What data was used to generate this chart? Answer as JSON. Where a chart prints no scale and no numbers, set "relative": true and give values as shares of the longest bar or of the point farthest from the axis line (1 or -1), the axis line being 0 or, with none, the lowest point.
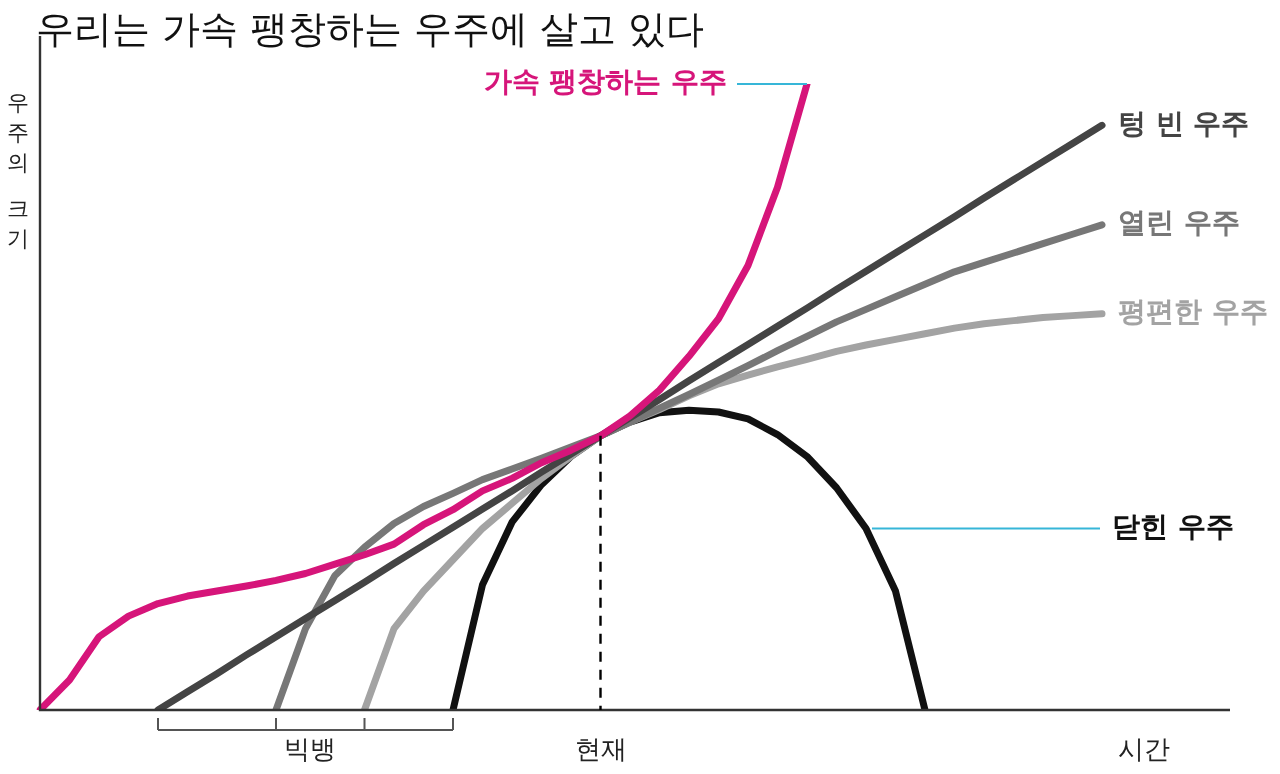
{
  "chart_data": {
    "type": "line",
    "title": "우리는 가속 팽창하는 우주에 살고 있다",
    "xlabel": "시간",
    "ylabel": "우주의 크기",
    "relative": true,
    "legend": "right",
    "marker": "none",
    "line_style": "solid",
    "categories": [
      null,
      null,
      null,
      null,
      null,
      null,
      null,
      null,
      null,
      null,
      null,
      null,
      null,
      null,
      null,
      null,
      null,
      null,
      null,
      null,
      null,
      null,
      null,
      null,
      null,
      null,
      null,
      null,
      null,
      null,
      null,
      null,
      null,
      null,
      null,
      null,
      null,
      null,
      null,
      null,
      null
    ],
    "series": [
      {
        "name": "가속 팽창하는 우주",
        "color": "#d6157a",
        "values": [
          0,
          0.048,
          0.117,
          0.15,
          0.17,
          0.182,
          0.19,
          0.198,
          0.207,
          0.218,
          0.233,
          0.248,
          0.265,
          0.296,
          0.32,
          0.35,
          0.37,
          0.395,
          0.415,
          0.438,
          0.47,
          0.511,
          0.565,
          0.625,
          0.71,
          0.835,
          1,
          null,
          null,
          null,
          null,
          null,
          null,
          null,
          null,
          null,
          null,
          null,
          null,
          null,
          null
        ]
      },
      {
        "name": "텅 빈 우주",
        "color": "#444444",
        "values": [
          null,
          null,
          null,
          null,
          0,
          0.029,
          0.058,
          0.088,
          0.117,
          0.146,
          0.175,
          0.204,
          0.234,
          0.263,
          0.292,
          0.321,
          0.35,
          0.38,
          0.409,
          0.438,
          0.467,
          0.496,
          0.526,
          0.555,
          0.584,
          0.613,
          0.642,
          0.672,
          0.701,
          0.73,
          0.759,
          0.788,
          0.818,
          0.847,
          0.876,
          0.905,
          0.934,
          null,
          null,
          null,
          null
        ]
      },
      {
        "name": "열린 우주",
        "color": "#777777",
        "values": [
          null,
          null,
          null,
          null,
          null,
          null,
          null,
          null,
          0,
          0.13,
          0.215,
          0.26,
          0.298,
          0.325,
          0.346,
          0.368,
          0.385,
          0.402,
          0.42,
          0.438,
          0.46,
          0.482,
          0.504,
          0.527,
          0.55,
          0.574,
          0.597,
          0.62,
          0.64,
          0.66,
          0.68,
          0.7,
          0.715,
          0.73,
          0.745,
          0.76,
          0.775,
          null,
          null,
          null,
          null
        ]
      },
      {
        "name": "평편한 우주",
        "color": "#a3a3a3",
        "values": [
          null,
          null,
          null,
          null,
          null,
          null,
          null,
          null,
          null,
          null,
          null,
          0,
          0.13,
          0.19,
          0.24,
          0.29,
          0.33,
          0.37,
          0.405,
          0.438,
          0.46,
          0.48,
          0.502,
          0.521,
          0.535,
          0.548,
          0.56,
          0.573,
          0.583,
          0.592,
          0.601,
          0.61,
          0.617,
          0.622,
          0.627,
          0.63,
          0.633,
          null,
          null,
          null,
          null
        ]
      },
      {
        "name": "닫힌 우주",
        "color": "#111111",
        "values": [
          null,
          null,
          null,
          null,
          null,
          null,
          null,
          null,
          null,
          null,
          null,
          null,
          null,
          null,
          0,
          0.2,
          0.3,
          0.36,
          0.405,
          0.438,
          0.46,
          0.475,
          0.479,
          0.476,
          0.465,
          0.44,
          0.405,
          0.355,
          0.29,
          0.19,
          0,
          null,
          null,
          null,
          null,
          null,
          null,
          null,
          null,
          null,
          null
        ]
      }
    ],
    "annotations": [
      "빅뱅",
      "현재"
    ]
  }
}
